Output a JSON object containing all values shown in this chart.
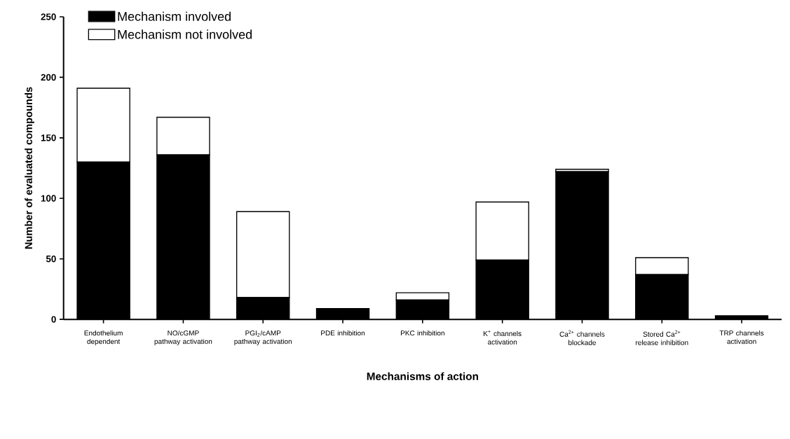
{
  "chart_data": {
    "type": "bar",
    "stacked": true,
    "xlabel": "Mechanisms of action",
    "ylabel": "Number of evaluated compounds",
    "categories": [
      "Endothelium dependent",
      "NO/cGMP pathway activation",
      "PGI$_{2}$/cAMP pathway activation",
      "PDE inhibition",
      "PKC inhibition",
      "K$^{+}$ channels activation",
      "Ca$^{2+}$ channels blockade",
      "Stored Ca$^{2+}$ release inhibition",
      "TRP channels activation"
    ],
    "series": [
      {
        "name": "Mechanism involved",
        "color": "#000000",
        "values": [
          130,
          136,
          18,
          9,
          16,
          49,
          122,
          37,
          3
        ]
      },
      {
        "name": "Mechanism not involved",
        "color": "#ffffff",
        "values": [
          61,
          31,
          71,
          0,
          6,
          48,
          2,
          14,
          0
        ]
      }
    ],
    "ylim": [
      0,
      250
    ],
    "yticks": [
      0,
      50,
      100,
      150,
      200,
      250
    ],
    "legend": "top left"
  }
}
